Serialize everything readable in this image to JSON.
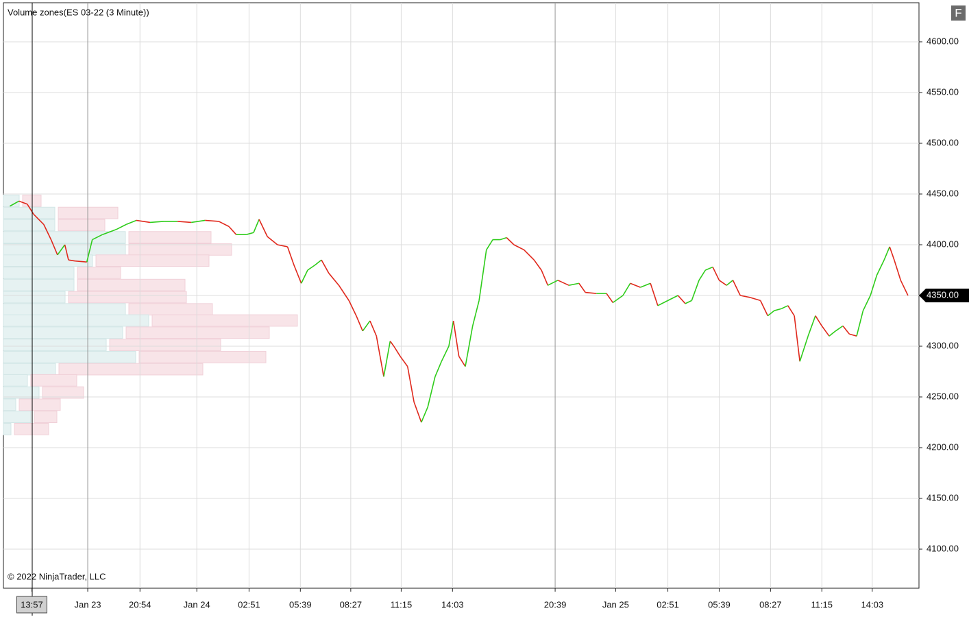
{
  "chart_data": {
    "type": "candles",
    "title": "Volume zones(ES 03-22 (3 Minute))",
    "copyright": "© 2022 NinjaTrader, LLC",
    "button": "F",
    "up_color": "#2ecc1a",
    "down_color": "#e0281c",
    "buy_color": "#e6f2f2",
    "sell_color": "#f8e4e8",
    "grid": true,
    "xlim": [
      -31,
      968
    ],
    "ylim": [
      4061.5,
      4638.5
    ],
    "xticks": [
      {
        "value": 0,
        "label": "13:57"
      },
      {
        "value": 61,
        "label": "Jan 23"
      },
      {
        "value": 118,
        "label": "20:54"
      },
      {
        "value": 180,
        "label": "Jan 24"
      },
      {
        "value": 237,
        "label": "02:51"
      },
      {
        "value": 293,
        "label": "05:39"
      },
      {
        "value": 348,
        "label": "08:27"
      },
      {
        "value": 403,
        "label": "11:15"
      },
      {
        "value": 459,
        "label": "14:03"
      },
      {
        "value": 571,
        "label": "20:39"
      },
      {
        "value": 637,
        "label": "Jan 25"
      },
      {
        "value": 694,
        "label": "02:51"
      },
      {
        "value": 750,
        "label": "05:39"
      },
      {
        "value": 806,
        "label": "08:27"
      },
      {
        "value": 862,
        "label": "11:15"
      },
      {
        "value": 917,
        "label": "14:03"
      }
    ],
    "yticks": [
      {
        "value": 4100,
        "label": "4100.00"
      },
      {
        "value": 4150,
        "label": "4150.00"
      },
      {
        "value": 4200,
        "label": "4200.00"
      },
      {
        "value": 4250,
        "label": "4250.00"
      },
      {
        "value": 4300,
        "label": "4300.00"
      },
      {
        "value": 4350,
        "label": "4350.00"
      },
      {
        "value": 4400,
        "label": "4400.00"
      },
      {
        "value": 4450,
        "label": "4450.00"
      },
      {
        "value": 4500,
        "label": "4500.00"
      },
      {
        "value": 4550,
        "label": "4550.00"
      },
      {
        "value": 4600,
        "label": "4600.00"
      }
    ],
    "last_price": {
      "value": 4350,
      "label": "4350.00"
    },
    "x": [
      -24,
      -14,
      -5,
      2,
      13,
      21,
      28,
      36,
      40,
      47,
      60,
      66,
      77,
      92,
      103,
      114,
      129,
      144,
      159,
      174,
      189,
      204,
      215,
      223,
      234,
      242,
      248,
      257,
      268,
      279,
      286,
      294,
      301,
      309,
      316,
      324,
      335,
      346,
      354,
      361,
      369,
      376,
      384,
      391,
      395,
      402,
      410,
      417,
      425,
      432,
      440,
      447,
      455,
      460,
      466,
      473,
      481,
      488,
      496,
      503,
      511,
      518,
      526,
      537,
      548,
      556,
      563,
      574,
      586,
      597,
      604,
      616,
      627,
      634,
      645,
      653,
      664,
      675,
      683,
      694,
      705,
      713,
      720,
      728,
      735,
      743,
      750,
      758,
      765,
      773,
      784,
      795,
      803,
      810,
      818,
      825,
      832,
      838,
      847,
      855,
      862,
      870,
      877,
      885,
      892,
      900,
      907,
      915,
      922,
      930,
      936,
      941,
      948,
      956
    ],
    "values": [
      4438,
      4443,
      4440,
      4430,
      4420,
      4405,
      4390,
      4400,
      4385,
      4384,
      4383,
      4405,
      4410,
      4415,
      4420,
      4424,
      4422,
      4423,
      4423,
      4422,
      4424,
      4423,
      4418,
      4410,
      4410,
      4412,
      4425,
      4408,
      4400,
      4398,
      4380,
      4362,
      4375,
      4380,
      4385,
      4372,
      4360,
      4345,
      4330,
      4315,
      4325,
      4310,
      4270,
      4305,
      4300,
      4290,
      4280,
      4245,
      4225,
      4240,
      4270,
      4285,
      4300,
      4325,
      4290,
      4280,
      4320,
      4345,
      4395,
      4405,
      4405,
      4407,
      4400,
      4395,
      4385,
      4375,
      4360,
      4365,
      4360,
      4362,
      4353,
      4352,
      4352,
      4343,
      4350,
      4362,
      4358,
      4362,
      4340,
      4345,
      4350,
      4342,
      4345,
      4365,
      4375,
      4378,
      4365,
      4360,
      4365,
      4350,
      4348,
      4345,
      4330,
      4335,
      4337,
      4340,
      4330,
      4285,
      4310,
      4330,
      4320,
      4310,
      4315,
      4320,
      4312,
      4310,
      4335,
      4350,
      4370,
      4385,
      4398,
      4385,
      4365,
      4350
    ],
    "volume_zones": {
      "levels": [
        4443,
        4431,
        4419,
        4407,
        4395,
        4384,
        4372,
        4360,
        4348,
        4336,
        4325,
        4313,
        4301,
        4289,
        4277,
        4266,
        4254,
        4242,
        4230,
        4218
      ],
      "buy": [
        23,
        75,
        75,
        178,
        178,
        130,
        103,
        103,
        90,
        178,
        212,
        174,
        150,
        193,
        76,
        35,
        52,
        18,
        40,
        11
      ],
      "sell": [
        27,
        87,
        68,
        120,
        150,
        165,
        63,
        157,
        172,
        122,
        212,
        209,
        162,
        185,
        210,
        67,
        60,
        60,
        33,
        50
      ]
    }
  }
}
